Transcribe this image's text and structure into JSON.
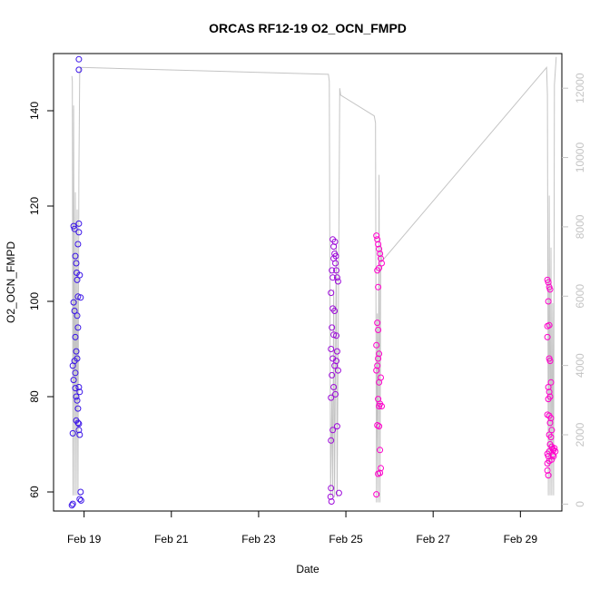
{
  "chart_data": {
    "type": "scatter",
    "title": "ORCAS RF12-19 O2_OCN_FMPD",
    "xlabel": "Date",
    "ylabel": "O2_OCN_FMPD",
    "x_ticks": [
      "Feb 19",
      "Feb 21",
      "Feb 23",
      "Feb 25",
      "Feb 27",
      "Feb 29"
    ],
    "x_tick_days": [
      19,
      21,
      23,
      25,
      27,
      29
    ],
    "xlim": [
      18.3,
      29.95
    ],
    "y_ticks": [
      60,
      80,
      100,
      120,
      140
    ],
    "ylim": [
      56,
      152
    ],
    "y2_ticks": [
      0,
      2000,
      4000,
      6000,
      8000,
      10000,
      12000
    ],
    "y2lim": [
      -200,
      13000
    ],
    "colors": {
      "early": "#3a14e8",
      "late": "#ff00cc",
      "line": "#c4c4c4"
    },
    "flights": [
      {
        "x_range": [
          18.72,
          18.95
        ],
        "points": [
          [
            18.72,
            57.2
          ],
          [
            18.74,
            57.5
          ],
          [
            18.76,
            115.8
          ],
          [
            18.78,
            115.2
          ],
          [
            18.8,
            109.5
          ],
          [
            18.82,
            108.0
          ],
          [
            18.83,
            106.0
          ],
          [
            18.84,
            104.5
          ],
          [
            18.86,
            112.0
          ],
          [
            18.86,
            101.0
          ],
          [
            18.76,
            99.8
          ],
          [
            18.84,
            97.0
          ],
          [
            18.86,
            94.5
          ],
          [
            18.88,
            116.3
          ],
          [
            18.88,
            114.5
          ],
          [
            18.9,
            105.5
          ],
          [
            18.92,
            100.8
          ],
          [
            18.8,
            92.5
          ],
          [
            18.82,
            89.5
          ],
          [
            18.78,
            87.5
          ],
          [
            18.74,
            86.5
          ],
          [
            18.8,
            85.0
          ],
          [
            18.84,
            88.0
          ],
          [
            18.76,
            83.5
          ],
          [
            18.8,
            81.8
          ],
          [
            18.82,
            80.0
          ],
          [
            18.84,
            79.2
          ],
          [
            18.88,
            82.0
          ],
          [
            18.9,
            81.0
          ],
          [
            18.86,
            77.5
          ],
          [
            18.82,
            75.0
          ],
          [
            18.86,
            74.5
          ],
          [
            18.88,
            73.0
          ],
          [
            18.9,
            72.0
          ],
          [
            18.74,
            72.3
          ],
          [
            18.88,
            74.3
          ],
          [
            18.92,
            60.0
          ],
          [
            18.9,
            58.5
          ],
          [
            18.93,
            58.2
          ],
          [
            18.88,
            150.8
          ],
          [
            18.88,
            148.6
          ],
          [
            18.78,
            98.0
          ]
        ]
      },
      {
        "x_range": [
          24.65,
          24.95
        ],
        "points": [
          [
            24.65,
            59.0
          ],
          [
            24.67,
            58.0
          ],
          [
            24.66,
            60.8
          ],
          [
            24.7,
            113.0
          ],
          [
            24.72,
            111.5
          ],
          [
            24.74,
            110.0
          ],
          [
            24.68,
            106.5
          ],
          [
            24.7,
            105.0
          ],
          [
            24.72,
            109.0
          ],
          [
            24.76,
            108.0
          ],
          [
            24.78,
            106.5
          ],
          [
            24.8,
            105.0
          ],
          [
            24.82,
            104.2
          ],
          [
            24.66,
            101.8
          ],
          [
            24.7,
            98.5
          ],
          [
            24.74,
            98.0
          ],
          [
            24.68,
            94.5
          ],
          [
            24.72,
            93.0
          ],
          [
            24.78,
            92.8
          ],
          [
            24.8,
            89.5
          ],
          [
            24.66,
            90.0
          ],
          [
            24.7,
            88.0
          ],
          [
            24.74,
            86.5
          ],
          [
            24.78,
            87.5
          ],
          [
            24.82,
            85.5
          ],
          [
            24.68,
            84.5
          ],
          [
            24.72,
            82.0
          ],
          [
            24.66,
            79.8
          ],
          [
            24.76,
            80.5
          ],
          [
            24.7,
            73.0
          ],
          [
            24.8,
            73.8
          ],
          [
            24.66,
            70.8
          ],
          [
            24.84,
            59.8
          ],
          [
            24.75,
            112.5
          ],
          [
            24.77,
            109.5
          ]
        ]
      },
      {
        "x_range": [
          25.68,
          25.9
        ],
        "points": [
          [
            25.7,
            113.8
          ],
          [
            25.72,
            113.0
          ],
          [
            25.74,
            112.0
          ],
          [
            25.76,
            111.0
          ],
          [
            25.78,
            110.0
          ],
          [
            25.8,
            109.0
          ],
          [
            25.82,
            108.0
          ],
          [
            25.72,
            106.5
          ],
          [
            25.76,
            107.0
          ],
          [
            25.74,
            103.0
          ],
          [
            25.72,
            95.5
          ],
          [
            25.74,
            94.0
          ],
          [
            25.7,
            90.8
          ],
          [
            25.76,
            89.0
          ],
          [
            25.74,
            88.0
          ],
          [
            25.72,
            86.5
          ],
          [
            25.7,
            85.5
          ],
          [
            25.76,
            83.0
          ],
          [
            25.8,
            84.0
          ],
          [
            25.74,
            79.5
          ],
          [
            25.76,
            78.0
          ],
          [
            25.78,
            78.5
          ],
          [
            25.72,
            74.0
          ],
          [
            25.76,
            73.8
          ],
          [
            25.78,
            68.8
          ],
          [
            25.8,
            65.0
          ],
          [
            25.78,
            64.0
          ],
          [
            25.74,
            63.8
          ],
          [
            25.7,
            59.5
          ],
          [
            25.82,
            78.0
          ]
        ]
      },
      {
        "x_range": [
          29.62,
          29.9
        ],
        "points": [
          [
            29.62,
            104.5
          ],
          [
            29.64,
            104.0
          ],
          [
            29.66,
            103.0
          ],
          [
            29.68,
            102.5
          ],
          [
            29.64,
            100.0
          ],
          [
            29.66,
            95.0
          ],
          [
            29.62,
            92.5
          ],
          [
            29.66,
            88.0
          ],
          [
            29.68,
            87.5
          ],
          [
            29.64,
            82.0
          ],
          [
            29.66,
            81.0
          ],
          [
            29.68,
            80.0
          ],
          [
            29.64,
            79.5
          ],
          [
            29.62,
            76.2
          ],
          [
            29.66,
            76.0
          ],
          [
            29.7,
            75.5
          ],
          [
            29.68,
            74.5
          ],
          [
            29.72,
            73.0
          ],
          [
            29.66,
            72.0
          ],
          [
            29.7,
            71.5
          ],
          [
            29.62,
            68.0
          ],
          [
            29.64,
            67.5
          ],
          [
            29.66,
            66.5
          ],
          [
            29.72,
            69.5
          ],
          [
            29.74,
            69.0
          ],
          [
            29.76,
            68.8
          ],
          [
            29.78,
            69.2
          ],
          [
            29.8,
            68.5
          ],
          [
            29.74,
            67.8
          ],
          [
            29.72,
            66.8
          ],
          [
            29.76,
            67.5
          ],
          [
            29.62,
            66.0
          ],
          [
            29.62,
            64.5
          ],
          [
            29.64,
            63.5
          ],
          [
            29.66,
            68.5
          ],
          [
            29.68,
            70.0
          ],
          [
            29.7,
            83.0
          ],
          [
            29.62,
            94.8
          ]
        ]
      }
    ],
    "secondary_line": [
      [
        18.72,
        12350
      ],
      [
        18.73,
        12200
      ],
      [
        18.745,
        250
      ],
      [
        18.76,
        11500
      ],
      [
        18.78,
        250
      ],
      [
        18.8,
        9000
      ],
      [
        18.82,
        250
      ],
      [
        18.84,
        8500
      ],
      [
        18.86,
        250
      ],
      [
        18.88,
        9500
      ],
      [
        18.9,
        12400
      ],
      [
        18.92,
        12600
      ],
      [
        24.6,
        12400
      ],
      [
        24.62,
        12200
      ],
      [
        24.65,
        200
      ],
      [
        24.68,
        3200
      ],
      [
        24.7,
        200
      ],
      [
        24.72,
        6200
      ],
      [
        24.74,
        200
      ],
      [
        24.78,
        7500
      ],
      [
        24.8,
        200
      ],
      [
        24.84,
        8000
      ],
      [
        24.86,
        12000
      ],
      [
        24.88,
        11800
      ],
      [
        25.65,
        11200
      ],
      [
        25.68,
        11000
      ],
      [
        25.7,
        50
      ],
      [
        25.72,
        5500
      ],
      [
        25.74,
        50
      ],
      [
        25.76,
        9500
      ],
      [
        25.78,
        50
      ],
      [
        25.8,
        7500
      ],
      [
        25.82,
        7000
      ],
      [
        29.6,
        12600
      ],
      [
        29.62,
        11800
      ],
      [
        29.64,
        250
      ],
      [
        29.66,
        8900
      ],
      [
        29.68,
        250
      ],
      [
        29.7,
        7400
      ],
      [
        29.72,
        250
      ],
      [
        29.74,
        5800
      ],
      [
        29.76,
        250
      ],
      [
        29.78,
        12100
      ],
      [
        29.82,
        12900
      ]
    ]
  }
}
